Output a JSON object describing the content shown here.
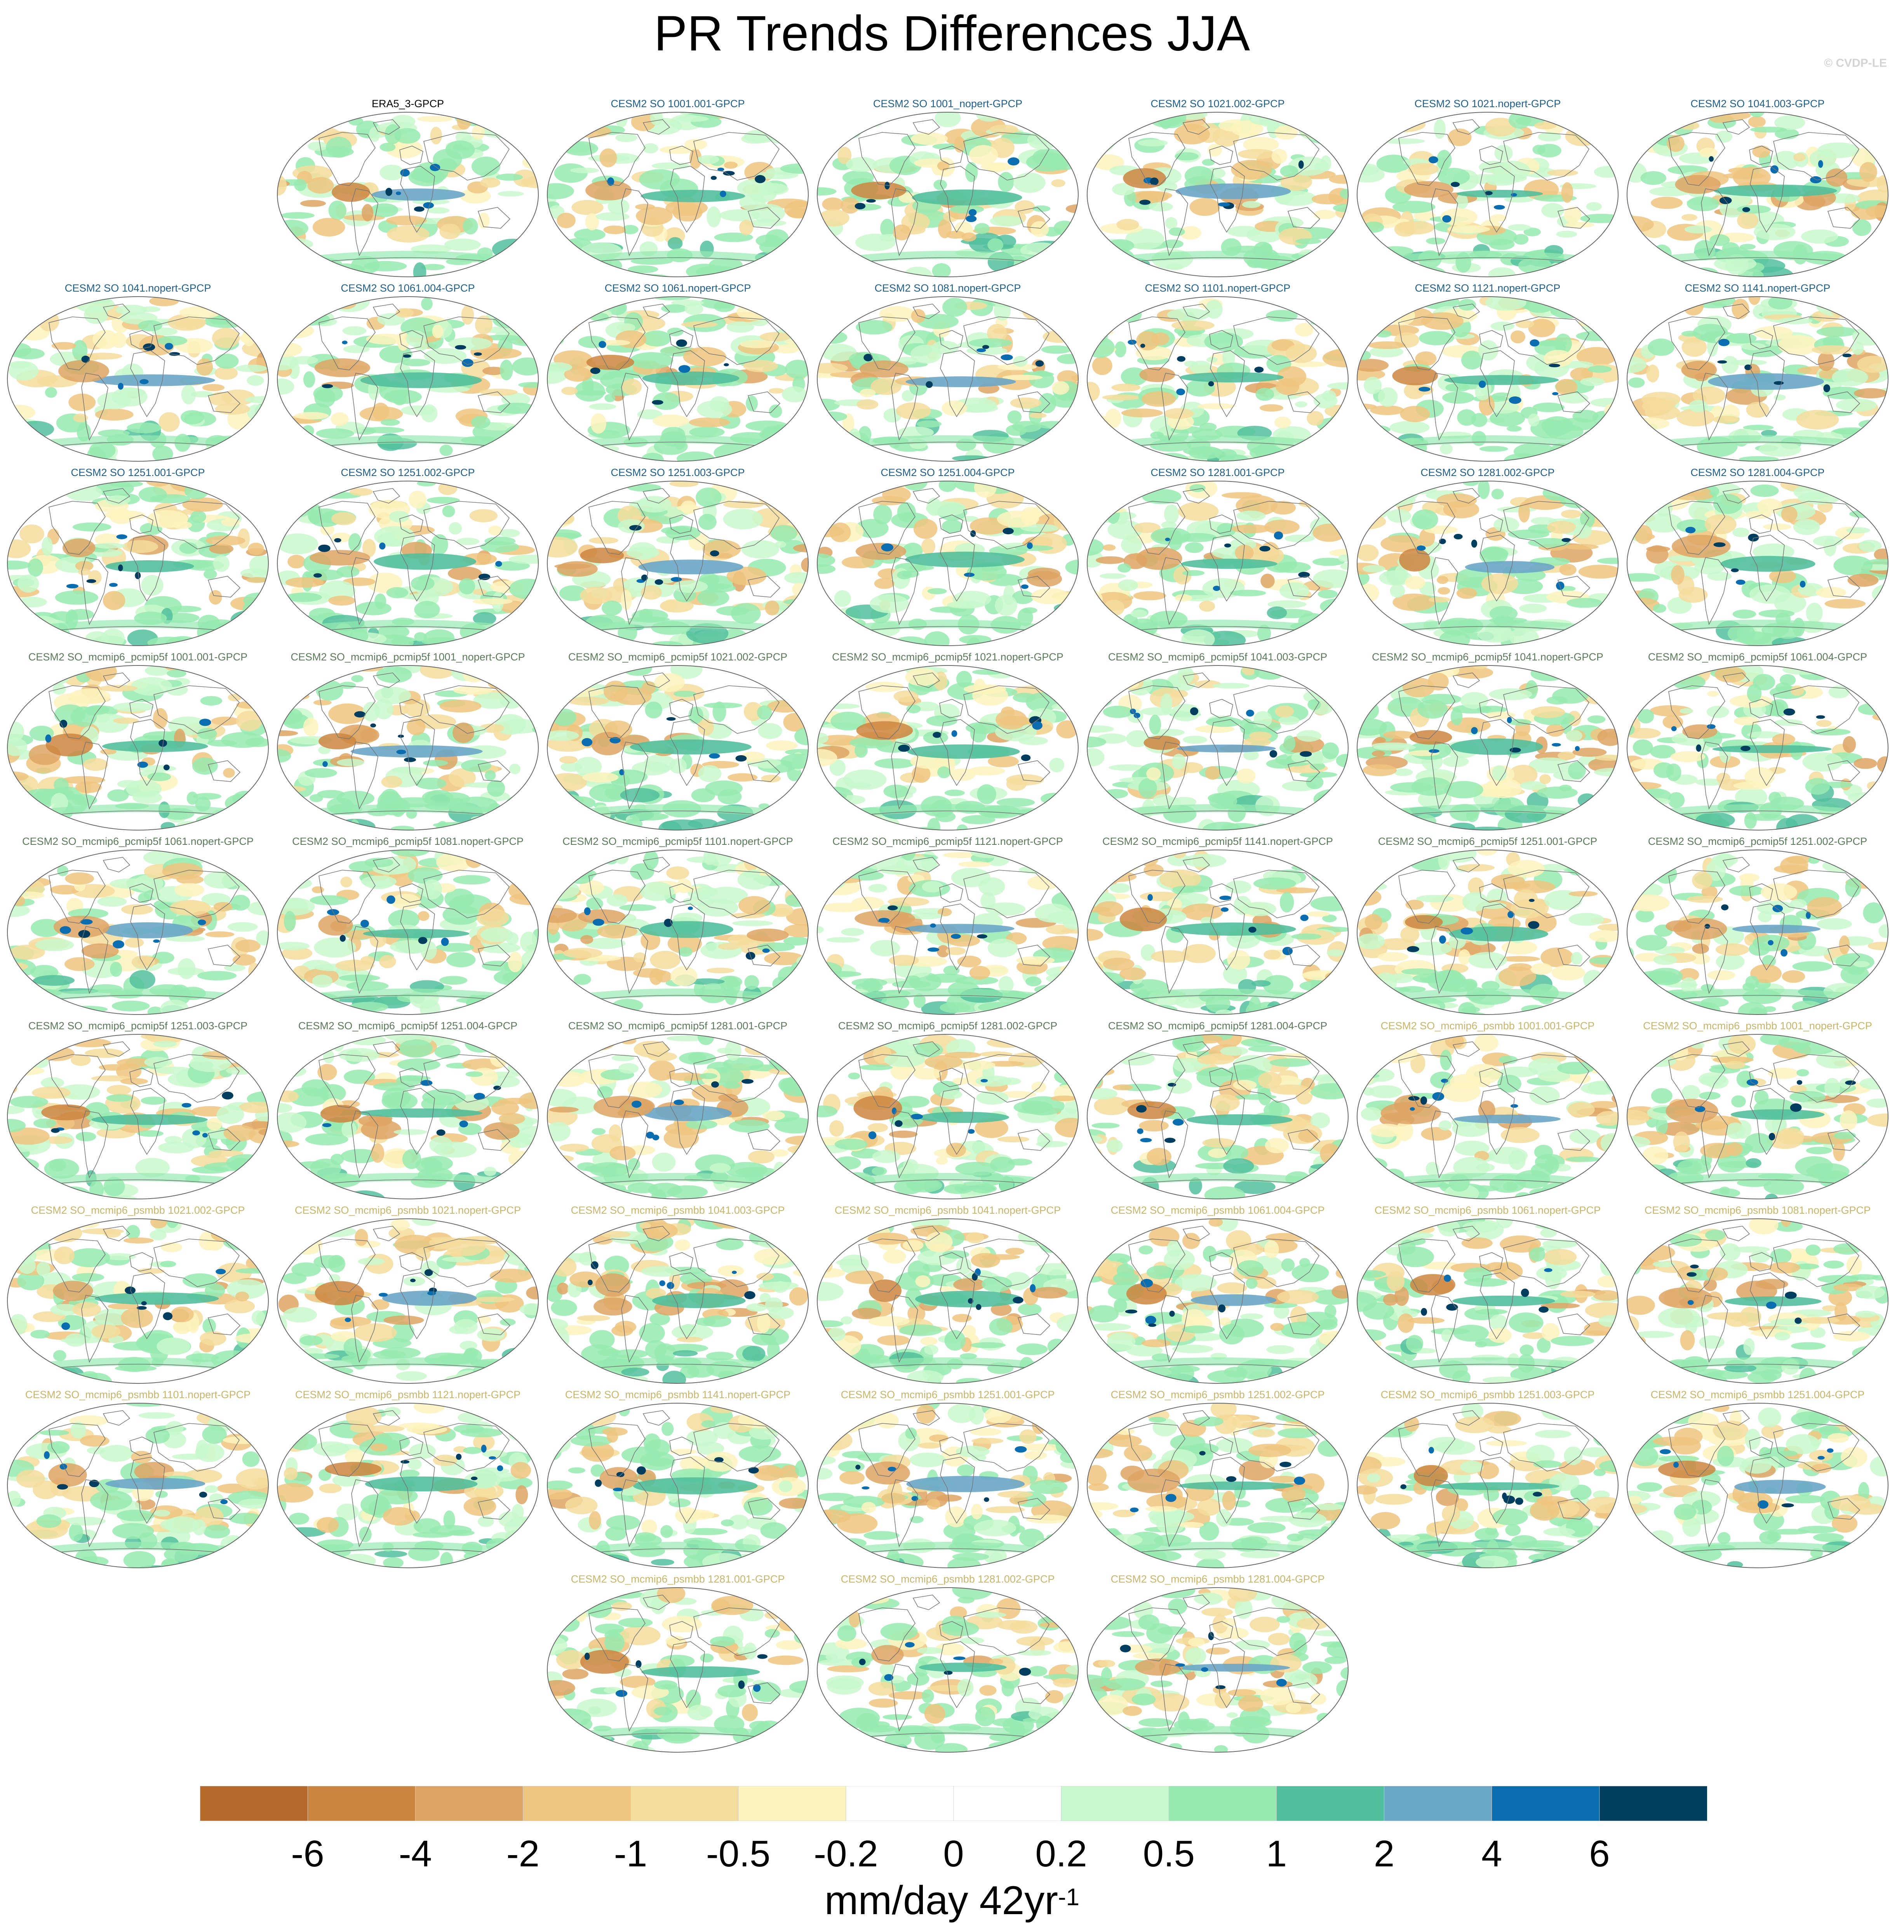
{
  "title": "PR Trends Differences JJA",
  "watermark": "© CVDP-LE",
  "colors": {
    "title_era5": "#000000",
    "title_so": "#1f5f8b",
    "title_pcmip5f": "#5a7a5a",
    "title_psmbb": "#c9b56a",
    "ocean_bg": "#ffffff",
    "coast": "#777777",
    "frame": "#666666"
  },
  "panels": [
    {
      "title": "ERA5_3-GPCP",
      "group": "era5"
    },
    {
      "title": "CESM2 SO 1001.001-GPCP",
      "group": "so"
    },
    {
      "title": "CESM2 SO 1001_nopert-GPCP",
      "group": "so"
    },
    {
      "title": "CESM2 SO 1021.002-GPCP",
      "group": "so"
    },
    {
      "title": "CESM2 SO 1021.nopert-GPCP",
      "group": "so"
    },
    {
      "title": "CESM2 SO 1041.003-GPCP",
      "group": "so"
    },
    {
      "title": "CESM2 SO 1041.nopert-GPCP",
      "group": "so"
    },
    {
      "title": "CESM2 SO 1061.004-GPCP",
      "group": "so"
    },
    {
      "title": "CESM2 SO 1061.nopert-GPCP",
      "group": "so"
    },
    {
      "title": "CESM2 SO 1081.nopert-GPCP",
      "group": "so"
    },
    {
      "title": "CESM2 SO 1101.nopert-GPCP",
      "group": "so"
    },
    {
      "title": "CESM2 SO 1121.nopert-GPCP",
      "group": "so"
    },
    {
      "title": "CESM2 SO 1141.nopert-GPCP",
      "group": "so"
    },
    {
      "title": "CESM2 SO 1251.001-GPCP",
      "group": "so"
    },
    {
      "title": "CESM2 SO 1251.002-GPCP",
      "group": "so"
    },
    {
      "title": "CESM2 SO 1251.003-GPCP",
      "group": "so"
    },
    {
      "title": "CESM2 SO 1251.004-GPCP",
      "group": "so"
    },
    {
      "title": "CESM2 SO 1281.001-GPCP",
      "group": "so"
    },
    {
      "title": "CESM2 SO 1281.002-GPCP",
      "group": "so"
    },
    {
      "title": "CESM2 SO 1281.004-GPCP",
      "group": "so"
    },
    {
      "title": "CESM2 SO_mcmip6_pcmip5f 1001.001-GPCP",
      "group": "pcmip5f"
    },
    {
      "title": "CESM2 SO_mcmip6_pcmip5f 1001_nopert-GPCP",
      "group": "pcmip5f"
    },
    {
      "title": "CESM2 SO_mcmip6_pcmip5f 1021.002-GPCP",
      "group": "pcmip5f"
    },
    {
      "title": "CESM2 SO_mcmip6_pcmip5f 1021.nopert-GPCP",
      "group": "pcmip5f"
    },
    {
      "title": "CESM2 SO_mcmip6_pcmip5f 1041.003-GPCP",
      "group": "pcmip5f"
    },
    {
      "title": "CESM2 SO_mcmip6_pcmip5f 1041.nopert-GPCP",
      "group": "pcmip5f"
    },
    {
      "title": "CESM2 SO_mcmip6_pcmip5f 1061.004-GPCP",
      "group": "pcmip5f"
    },
    {
      "title": "CESM2 SO_mcmip6_pcmip5f 1061.nopert-GPCP",
      "group": "pcmip5f"
    },
    {
      "title": "CESM2 SO_mcmip6_pcmip5f 1081.nopert-GPCP",
      "group": "pcmip5f"
    },
    {
      "title": "CESM2 SO_mcmip6_pcmip5f 1101.nopert-GPCP",
      "group": "pcmip5f"
    },
    {
      "title": "CESM2 SO_mcmip6_pcmip5f 1121.nopert-GPCP",
      "group": "pcmip5f"
    },
    {
      "title": "CESM2 SO_mcmip6_pcmip5f 1141.nopert-GPCP",
      "group": "pcmip5f"
    },
    {
      "title": "CESM2 SO_mcmip6_pcmip5f 1251.001-GPCP",
      "group": "pcmip5f"
    },
    {
      "title": "CESM2 SO_mcmip6_pcmip5f 1251.002-GPCP",
      "group": "pcmip5f"
    },
    {
      "title": "CESM2 SO_mcmip6_pcmip5f 1251.003-GPCP",
      "group": "pcmip5f"
    },
    {
      "title": "CESM2 SO_mcmip6_pcmip5f 1251.004-GPCP",
      "group": "pcmip5f"
    },
    {
      "title": "CESM2 SO_mcmip6_pcmip5f 1281.001-GPCP",
      "group": "pcmip5f"
    },
    {
      "title": "CESM2 SO_mcmip6_pcmip5f 1281.002-GPCP",
      "group": "pcmip5f"
    },
    {
      "title": "CESM2 SO_mcmip6_pcmip5f 1281.004-GPCP",
      "group": "pcmip5f"
    },
    {
      "title": "CESM2 SO_mcmip6_psmbb 1001.001-GPCP",
      "group": "psmbb"
    },
    {
      "title": "CESM2 SO_mcmip6_psmbb 1001_nopert-GPCP",
      "group": "psmbb"
    },
    {
      "title": "CESM2 SO_mcmip6_psmbb 1021.002-GPCP",
      "group": "psmbb"
    },
    {
      "title": "CESM2 SO_mcmip6_psmbb 1021.nopert-GPCP",
      "group": "psmbb"
    },
    {
      "title": "CESM2 SO_mcmip6_psmbb 1041.003-GPCP",
      "group": "psmbb"
    },
    {
      "title": "CESM2 SO_mcmip6_psmbb 1041.nopert-GPCP",
      "group": "psmbb"
    },
    {
      "title": "CESM2 SO_mcmip6_psmbb 1061.004-GPCP",
      "group": "psmbb"
    },
    {
      "title": "CESM2 SO_mcmip6_psmbb 1061.nopert-GPCP",
      "group": "psmbb"
    },
    {
      "title": "CESM2 SO_mcmip6_psmbb 1081.nopert-GPCP",
      "group": "psmbb"
    },
    {
      "title": "CESM2 SO_mcmip6_psmbb 1101.nopert-GPCP",
      "group": "psmbb"
    },
    {
      "title": "CESM2 SO_mcmip6_psmbb 1121.nopert-GPCP",
      "group": "psmbb"
    },
    {
      "title": "CESM2 SO_mcmip6_psmbb 1141.nopert-GPCP",
      "group": "psmbb"
    },
    {
      "title": "CESM2 SO_mcmip6_psmbb 1251.001-GPCP",
      "group": "psmbb"
    },
    {
      "title": "CESM2 SO_mcmip6_psmbb 1251.002-GPCP",
      "group": "psmbb"
    },
    {
      "title": "CESM2 SO_mcmip6_psmbb 1251.003-GPCP",
      "group": "psmbb"
    },
    {
      "title": "CESM2 SO_mcmip6_psmbb 1251.004-GPCP",
      "group": "psmbb"
    },
    {
      "title": "CESM2 SO_mcmip6_psmbb 1281.001-GPCP",
      "group": "psmbb"
    },
    {
      "title": "CESM2 SO_mcmip6_psmbb 1281.002-GPCP",
      "group": "psmbb"
    },
    {
      "title": "CESM2 SO_mcmip6_psmbb 1281.004-GPCP",
      "group": "psmbb"
    }
  ],
  "colorbar": {
    "colors": [
      "#b5692a",
      "#cc8540",
      "#dea464",
      "#efc47f",
      "#f4dc9c",
      "#fdf3bd",
      "#ffffff",
      "#ffffff",
      "#c8f8cc",
      "#96eab0",
      "#52bf9c",
      "#6aa6c6",
      "#0a6db0",
      "#003d5e"
    ],
    "labels": [
      "-6",
      "-4",
      "-2",
      "-1",
      "-0.5",
      "-0.2",
      "0",
      "0.2",
      "0.5",
      "1",
      "2",
      "4",
      "6"
    ],
    "units": "mm/day 42yr",
    "units_sup": "-1"
  }
}
